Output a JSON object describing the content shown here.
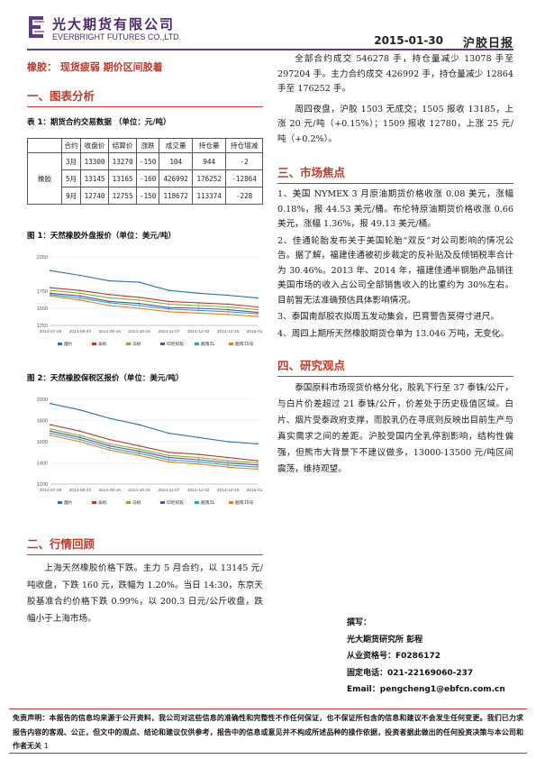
{
  "header": {
    "company_cn": "光大期货有限公司",
    "company_en": "EVERBRIGHT FUTURES CO.,LTD.",
    "date": "2015-01-30",
    "report_type": "沪胶日报"
  },
  "headline": "橡胶：  现货疲弱 期价区间胶着",
  "section1": {
    "title": "一、图表分析",
    "table_caption": "表 1：期货合约交易数据 （单位：元/吨）",
    "table": {
      "headers": [
        "合约",
        "收盘价",
        "结算价",
        "涨跌",
        "成交量",
        "持仓量",
        "持仓增减"
      ],
      "product": "橡胶",
      "rows": [
        [
          "3月",
          "13300",
          "13270",
          "-150",
          "104",
          "944",
          "-2"
        ],
        [
          "5月",
          "13145",
          "13165",
          "-160",
          "426992",
          "176252",
          "-12864"
        ],
        [
          "9月",
          "12740",
          "12755",
          "-150",
          "118672",
          "113374",
          "-228"
        ]
      ]
    },
    "chart1_caption": "图 1：天然橡胶外盘报价（单位：美元/吨）",
    "chart2_caption": "图 2：天然橡胶保税区报价（单位：美元/吨）"
  },
  "chart_data": [
    {
      "type": "line",
      "title": "图 1：天然橡胶外盘报价（单位：美元/吨）",
      "ylim": [
        1250,
        2250
      ],
      "yticks": [
        "2250",
        "1750",
        "1500",
        "1250"
      ],
      "x": [
        "2014-07-28",
        "2014-08-20",
        "2014-09-15",
        "2014-10-15",
        "2014-11-07",
        "2014-12-02",
        "2014-12-25",
        "2015-01-21"
      ],
      "series": [
        {
          "name": "烟片",
          "color": "#2e6fb6",
          "values": [
            2050,
            1980,
            1900,
            1880,
            1760,
            1720,
            1690,
            1650
          ]
        },
        {
          "name": "泰标",
          "color": "#c0392b",
          "values": [
            1800,
            1760,
            1700,
            1660,
            1600,
            1580,
            1560,
            1520
          ]
        },
        {
          "name": "马标",
          "color": "#7fb13a",
          "values": [
            1760,
            1720,
            1650,
            1620,
            1560,
            1540,
            1520,
            1480
          ]
        },
        {
          "name": "印尼标胶",
          "color": "#6a4c93",
          "values": [
            1720,
            1680,
            1600,
            1570,
            1510,
            1500,
            1480,
            1440
          ]
        },
        {
          "name": "越南3L",
          "color": "#2aa6b8",
          "values": [
            1700,
            1650,
            1580,
            1540,
            1490,
            1470,
            1450,
            1420
          ]
        },
        {
          "name": "越南10号",
          "color": "#e67e22",
          "values": [
            1680,
            1620,
            1540,
            1500,
            1450,
            1430,
            1410,
            1380
          ]
        }
      ]
    },
    {
      "type": "line",
      "title": "图 2：天然橡胶保税区报价（单位：美元/吨）",
      "ylim": [
        1200,
        2000
      ],
      "yticks": [
        "2000",
        "1800",
        "1600",
        "1400",
        "1200"
      ],
      "x": [
        "2014-07-28",
        "2014-08-20",
        "2014-09-15",
        "2014-10-15",
        "2014-11-07",
        "2014-12-02",
        "2014-12-25",
        "2015-01-21"
      ],
      "series": [
        {
          "name": "烟片",
          "color": "#2e6fb6",
          "values": [
            1960,
            1900,
            1820,
            1760,
            1680,
            1640,
            1600,
            1580
          ]
        },
        {
          "name": "泰标",
          "color": "#c0392b",
          "values": [
            1760,
            1700,
            1620,
            1560,
            1500,
            1480,
            1450,
            1420
          ]
        },
        {
          "name": "马标",
          "color": "#7fb13a",
          "values": [
            1720,
            1660,
            1580,
            1530,
            1470,
            1450,
            1420,
            1400
          ]
        },
        {
          "name": "印尼标胶",
          "color": "#6a4c93",
          "values": [
            1700,
            1640,
            1560,
            1510,
            1450,
            1430,
            1400,
            1380
          ]
        },
        {
          "name": "越南3L",
          "color": "#2aa6b8",
          "values": [
            1680,
            1620,
            1540,
            1490,
            1430,
            1410,
            1380,
            1360
          ]
        },
        {
          "name": "越南10号",
          "color": "#e67e22",
          "values": [
            1660,
            1600,
            1520,
            1470,
            1410,
            1390,
            1360,
            1340
          ]
        }
      ]
    }
  ],
  "section2": {
    "title": "二、行情回顾",
    "text": "上海天然橡胶价格下跌。主力 5 月合约，以 13145 元/吨收盘，下跌 160 元，跌幅为 1.20%。当日 14:30，东京天胶基准合约价格下跌 0.99%，以 200.3 日元/公斤收盘，跌幅小于上海市场。"
  },
  "right_intro": {
    "p1": "全部合约成交 546278 手，持仓量减少 13078 手至 297204 手。主力合约成交 426992 手，持仓量减少 12864 手至 176252 手。",
    "p2": "周四夜盘，沪胶 1503 无成交；1505 报收 13185，上涨 20 元/吨（+0.15%）；1509 报收 12780，上涨 25 元/吨（+0.2%）。"
  },
  "section3": {
    "title": "三、市场焦点",
    "items": [
      "1、美国 NYMEX 3 月原油期货价格收涨 0.08 美元，涨幅 0.18%，报 44.53 美元/桶。布伦特原油期货价格收涨 0.66 美元，涨幅 1.36%，报 49.13 美元/桶。",
      "2、佳通轮胎发布关于美国轮胎“双反”对公司影响的情况公告。据了解，福建佳通被初步裁定的反补贴及反倾销税率合计为 30.46%。2013 年、2014 年，福建佳通半钢胎产品销往美国市场的收入占公司全部销售收入的比重约为 30%左右。目前暂无法准确预估具体影响情况。",
      "3、泰国南部胶农拟周五发动集会，巴育警告莫得寸进尺。",
      "4、周四上期所天然橡胶期货仓单为 13.046 万吨，无变化。"
    ]
  },
  "section4": {
    "title": "四、研究观点",
    "text": "泰国原料市场现货价格分化，胶乳下行至 37 泰铢/公斤，与白片价差超过 21 泰铢/公斤，价差处于历史极值区域。白片、烟片受泰政府支撑，而胶乳仍在寻底则反映出目前生产与真实需求之间的差距。沪胶受国内全乳停割影响，结构性偏强，但熊市大背景下不建议做多，13000-13500 元/吨区间震荡，维持观望。"
  },
  "author": {
    "label": "撰写：",
    "org": "光大期货研究所 彭程",
    "license": "从业资格号：F0286172",
    "phone": "固定电话：021-22169060-237",
    "email": "Email：pengcheng1@ebfcn.com.cn"
  },
  "disclaimer": {
    "text": "免责声明：本报告的信息均来源于公开资料，我公司对这些信息的准确性和完整性不作任何保证，也不保证所包含的信息和建议不会发生任何变更。我们已力求报告内容的客观、公正，但文中的观点、结论和建议仅供参考，报告中的信息或意见并不构成所述品种的操作依据，投资者据此做出的任何投资决策与本公司和作者无关",
    "page": "1"
  }
}
